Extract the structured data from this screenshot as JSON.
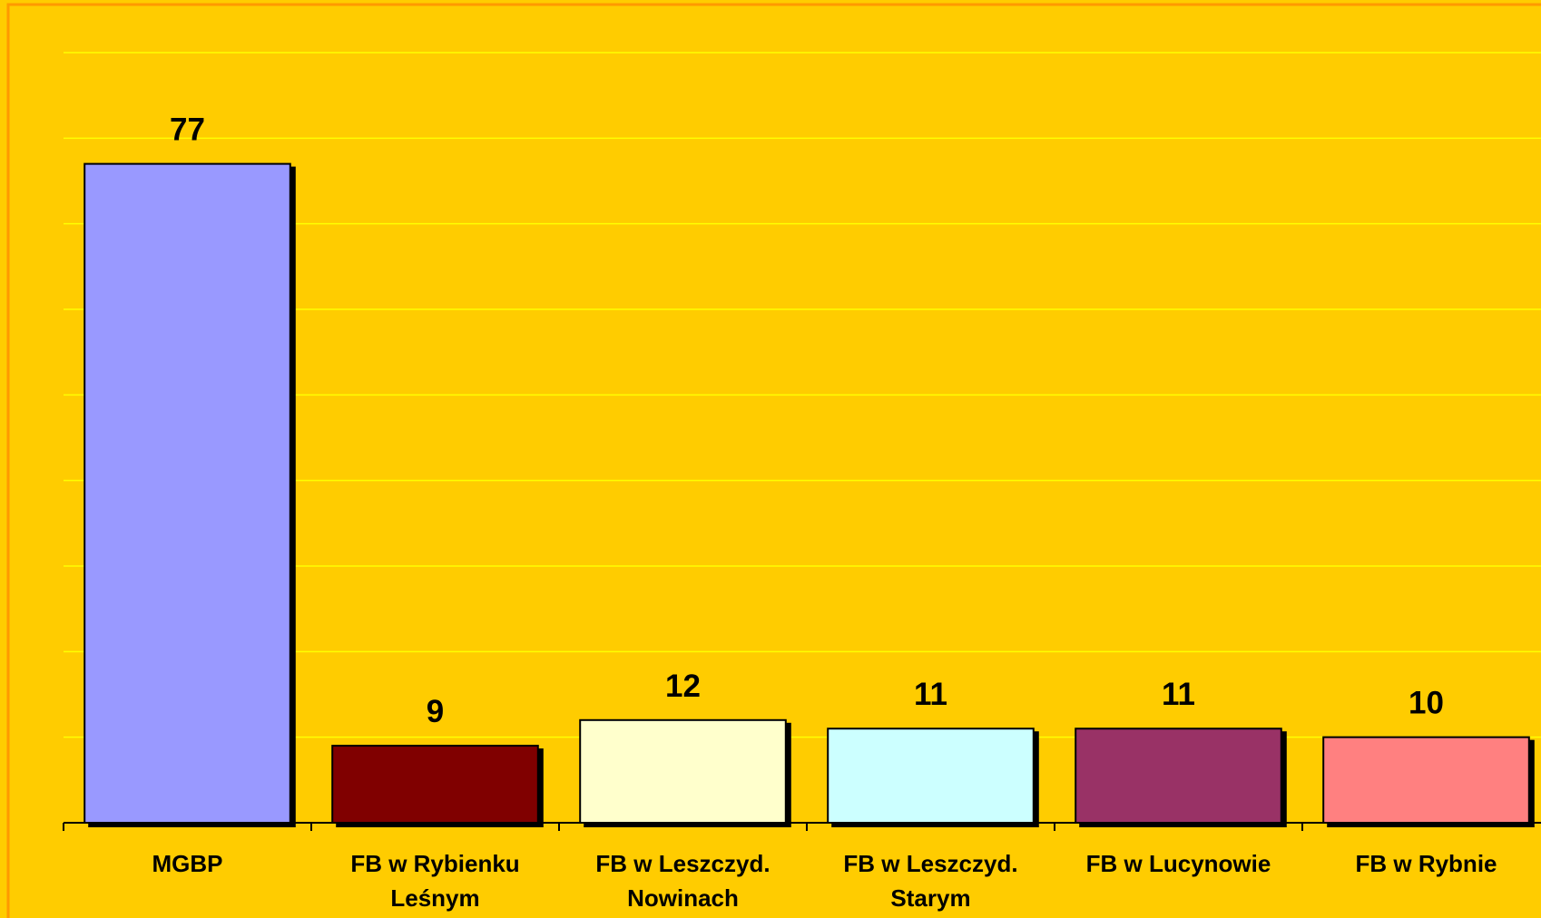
{
  "chart_data": {
    "type": "bar",
    "categories": [
      "MGBP",
      "FB w Rybienku Leśnym",
      "FB w Leszczyd. Nowinach",
      "FB w Leszczyd. Starym",
      "FB w Lucynowie",
      "FB w Rybnie"
    ],
    "values": [
      77,
      9,
      12,
      11,
      11,
      10
    ],
    "colors": [
      "#9999ff",
      "#800000",
      "#ffffcc",
      "#ccffff",
      "#993366",
      "#ff8080"
    ],
    "ylim": [
      0,
      90
    ],
    "yticks": [
      0,
      10,
      20,
      30,
      40,
      50,
      60,
      70,
      80,
      90
    ],
    "grid": true
  }
}
